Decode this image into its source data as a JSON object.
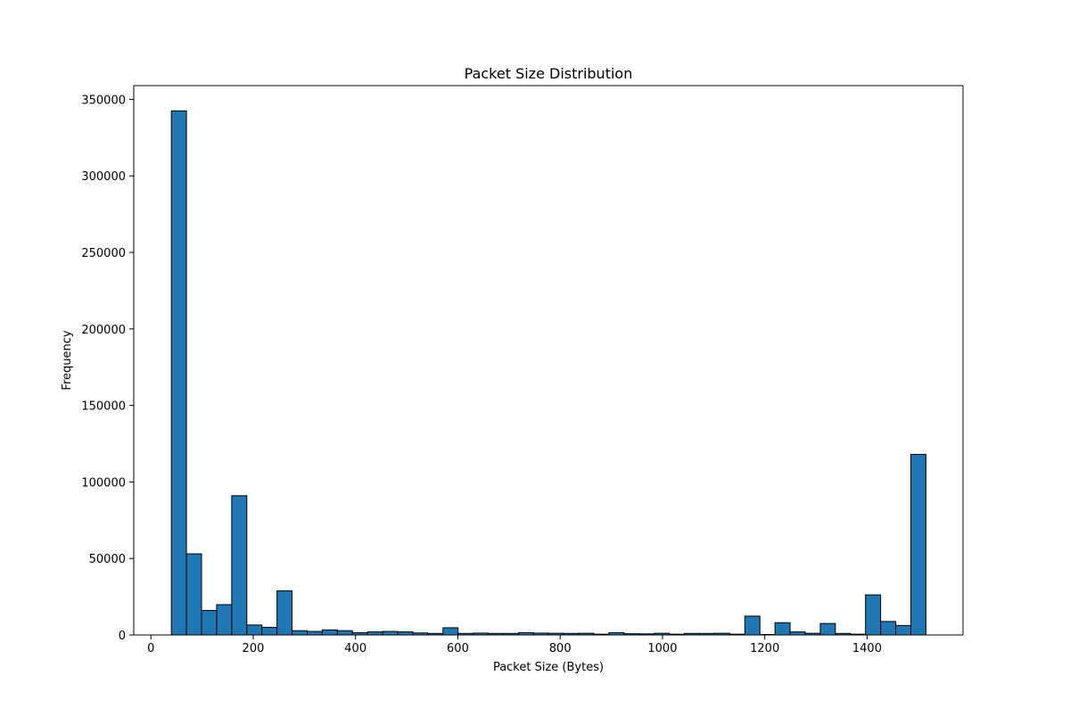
{
  "chart_data": {
    "type": "bar",
    "title": "Packet Size Distribution",
    "xlabel": "Packet Size (Bytes)",
    "ylabel": "Frequency",
    "xlim": [
      -33.5,
      1587.5
    ],
    "ylim": [
      0,
      359000
    ],
    "x_ticks": [
      0,
      200,
      400,
      600,
      800,
      1000,
      1200,
      1400
    ],
    "y_ticks": [
      0,
      50000,
      100000,
      150000,
      200000,
      250000,
      300000,
      350000
    ],
    "bin_start": 40,
    "bin_width": 29.5,
    "values": [
      342500,
      53000,
      16000,
      19800,
      91000,
      6500,
      5000,
      28800,
      2800,
      2300,
      3300,
      2800,
      1500,
      2000,
      2300,
      2000,
      1300,
      1000,
      4700,
      1000,
      1200,
      1000,
      1000,
      1500,
      1200,
      1100,
      1000,
      1100,
      500,
      1500,
      800,
      700,
      1100,
      500,
      1000,
      1000,
      1100,
      500,
      12300,
      300,
      8000,
      2000,
      1100,
      7500,
      1000,
      500,
      26200,
      8800,
      6200,
      118000
    ],
    "bar_color": "#1f77b4",
    "edge_color": "#000000",
    "grid": false,
    "legend": "none"
  }
}
